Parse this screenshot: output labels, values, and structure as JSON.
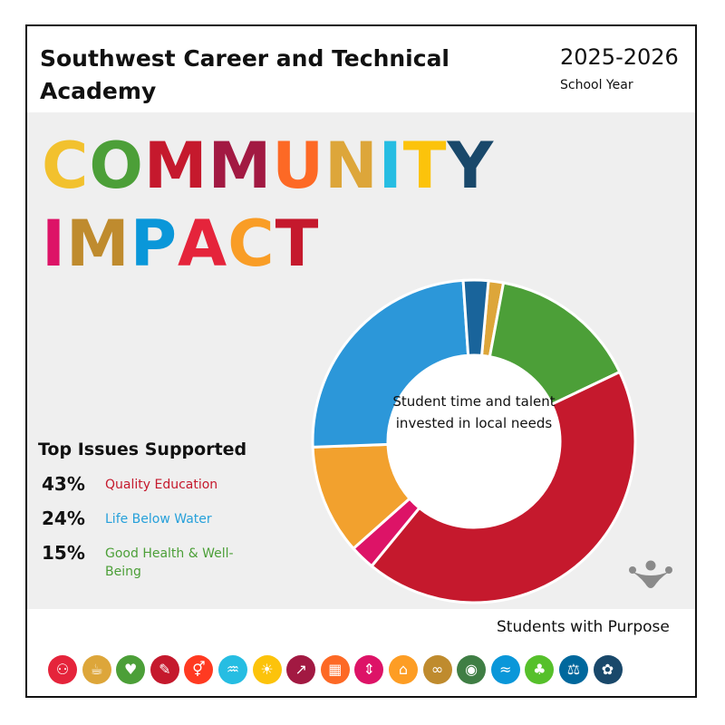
{
  "header": {
    "school_name": "Southwest Career and Technical Academy",
    "year": "2025-2026",
    "year_sub": "School Year"
  },
  "headline": {
    "line1": [
      {
        "ch": "C",
        "color": "#f2c12e"
      },
      {
        "ch": "O",
        "color": "#4c9f38"
      },
      {
        "ch": "M",
        "color": "#c5192d"
      },
      {
        "ch": "M",
        "color": "#a21942"
      },
      {
        "ch": "U",
        "color": "#fd6925"
      },
      {
        "ch": "N",
        "color": "#dda63a"
      },
      {
        "ch": "I",
        "color": "#26bde2"
      },
      {
        "ch": "T",
        "color": "#fcc30b"
      },
      {
        "ch": "Y",
        "color": "#19486a"
      }
    ],
    "line2": [
      {
        "ch": "I",
        "color": "#dd1367"
      },
      {
        "ch": "M",
        "color": "#bf8b2e"
      },
      {
        "ch": "P",
        "color": "#0a97d9"
      },
      {
        "ch": "A",
        "color": "#e5243b"
      },
      {
        "ch": "C",
        "color": "#f99d26"
      },
      {
        "ch": "T",
        "color": "#c5192d"
      }
    ]
  },
  "issues": {
    "title": "Top Issues Supported",
    "items": [
      {
        "pct": "43%",
        "label": "Quality Education",
        "color": "#c5192d"
      },
      {
        "pct": "24%",
        "label": "Life Below Water",
        "color": "#26a0da"
      },
      {
        "pct": "15%",
        "label": "Good Health & Well-Being",
        "color": "#4c9f38"
      }
    ]
  },
  "chart_data": {
    "type": "pie",
    "center_label": "Student time and talent invested in local needs",
    "slices": [
      {
        "value": 1.5,
        "color": "#dda63a"
      },
      {
        "value": 15,
        "color": "#4c9f38"
      },
      {
        "value": 43,
        "color": "#c5192d"
      },
      {
        "value": 2.5,
        "color": "#dd1367"
      },
      {
        "value": 11,
        "color": "#f2a12e"
      },
      {
        "value": 24.5,
        "color": "#2c97d9"
      },
      {
        "value": 2.5,
        "color": "#19649b"
      }
    ]
  },
  "footer": {
    "tagline": "Students with Purpose",
    "sdg_icons": [
      {
        "name": "no-poverty-icon",
        "color": "#e5243b",
        "glyph": "⚇"
      },
      {
        "name": "zero-hunger-icon",
        "color": "#dda63a",
        "glyph": "☕"
      },
      {
        "name": "good-health-icon",
        "color": "#4c9f38",
        "glyph": "♥"
      },
      {
        "name": "quality-education-icon",
        "color": "#c5192d",
        "glyph": "✎"
      },
      {
        "name": "gender-equality-icon",
        "color": "#ff3a21",
        "glyph": "⚥"
      },
      {
        "name": "clean-water-icon",
        "color": "#26bde2",
        "glyph": "♒"
      },
      {
        "name": "clean-energy-icon",
        "color": "#fcc30b",
        "glyph": "☀"
      },
      {
        "name": "decent-work-icon",
        "color": "#a21942",
        "glyph": "↗"
      },
      {
        "name": "industry-innovation-icon",
        "color": "#fd6925",
        "glyph": "▦"
      },
      {
        "name": "reduced-inequalities-icon",
        "color": "#dd1367",
        "glyph": "⇕"
      },
      {
        "name": "sustainable-cities-icon",
        "color": "#fd9d24",
        "glyph": "⌂"
      },
      {
        "name": "responsible-consumption-icon",
        "color": "#bf8b2e",
        "glyph": "∞"
      },
      {
        "name": "climate-action-icon",
        "color": "#3f7e44",
        "glyph": "◉"
      },
      {
        "name": "life-below-water-icon",
        "color": "#0a97d9",
        "glyph": "≈"
      },
      {
        "name": "life-on-land-icon",
        "color": "#56c02b",
        "glyph": "♣"
      },
      {
        "name": "peace-justice-icon",
        "color": "#00689d",
        "glyph": "⚖"
      },
      {
        "name": "partnerships-icon",
        "color": "#19486a",
        "glyph": "✿"
      }
    ]
  }
}
